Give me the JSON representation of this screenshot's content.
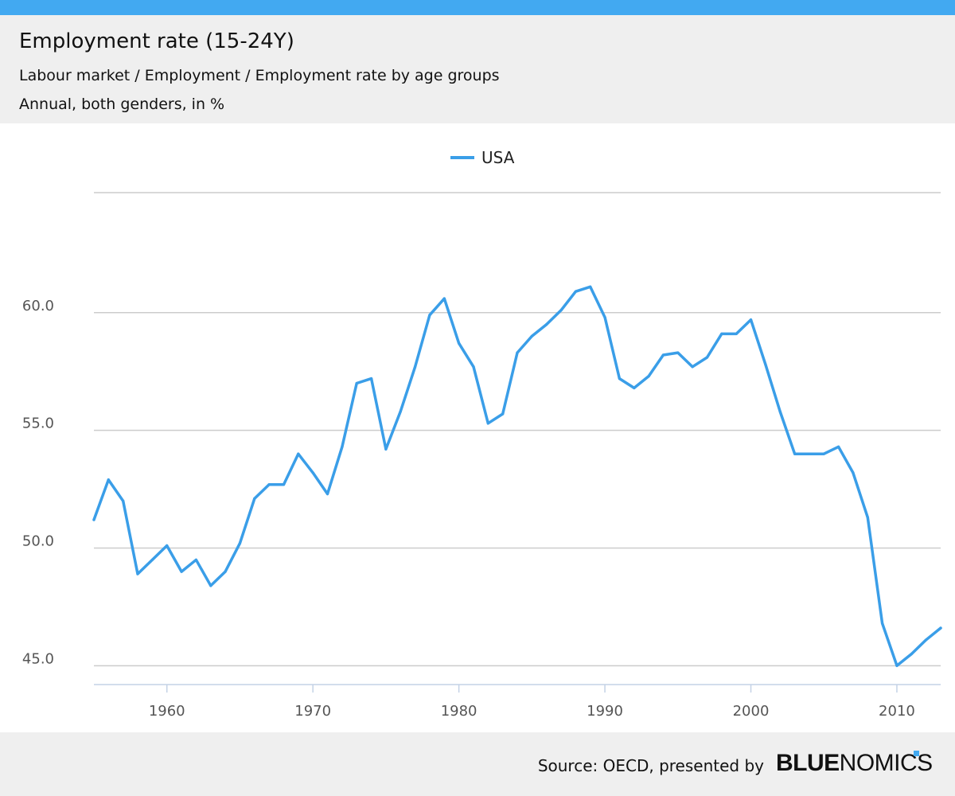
{
  "header": {
    "title": "Employment rate (15-24Y)",
    "subtitle": "Labour market / Employment / Employment rate by age groups",
    "subtitle2": "Annual, both genders, in %"
  },
  "colors": {
    "accent": "#42a9f1",
    "line": "#3a9ee8",
    "grid": "#cccccc",
    "header_bg": "#efefef"
  },
  "footer": {
    "source": "Source: OECD, presented by",
    "logo_bold": "BLUE",
    "logo_light": "NOMICS"
  },
  "chart_data": {
    "type": "line",
    "title": "Employment rate (15-24Y)",
    "xlabel": "",
    "ylabel": "",
    "xlim": [
      1955,
      2013
    ],
    "ylim": [
      44.2,
      65.1
    ],
    "x_ticks": [
      1960,
      1970,
      1980,
      1990,
      2000,
      2010
    ],
    "y_ticks": [
      45.0,
      50.0,
      55.0,
      60.0
    ],
    "y_tick_labels": [
      "45.0",
      "50.0",
      "55.0",
      "60.0"
    ],
    "grid": true,
    "legend_position": "top-center",
    "series": [
      {
        "name": "USA",
        "x": [
          1955,
          1956,
          1957,
          1958,
          1959,
          1960,
          1961,
          1962,
          1963,
          1964,
          1965,
          1966,
          1967,
          1968,
          1969,
          1970,
          1971,
          1972,
          1973,
          1974,
          1975,
          1976,
          1977,
          1978,
          1979,
          1980,
          1981,
          1982,
          1983,
          1984,
          1985,
          1986,
          1987,
          1988,
          1989,
          1990,
          1991,
          1992,
          1993,
          1994,
          1995,
          1996,
          1997,
          1998,
          1999,
          2000,
          2001,
          2002,
          2003,
          2004,
          2005,
          2006,
          2007,
          2008,
          2009,
          2010,
          2011,
          2012,
          2013
        ],
        "values": [
          51.2,
          52.9,
          52.0,
          48.9,
          49.5,
          50.1,
          49.0,
          49.5,
          48.4,
          49.0,
          50.2,
          52.1,
          52.7,
          52.7,
          54.0,
          53.2,
          52.3,
          54.3,
          57.0,
          57.2,
          54.2,
          55.8,
          57.7,
          59.9,
          60.6,
          58.7,
          57.7,
          55.3,
          55.7,
          58.3,
          59.0,
          59.5,
          60.1,
          60.9,
          61.1,
          59.8,
          57.2,
          56.8,
          57.3,
          58.2,
          58.3,
          57.7,
          58.1,
          59.1,
          59.1,
          59.7,
          57.8,
          55.8,
          54.0,
          54.0,
          54.0,
          54.3,
          53.2,
          51.3,
          46.8,
          45.0,
          45.5,
          46.1,
          46.6
        ]
      }
    ]
  }
}
